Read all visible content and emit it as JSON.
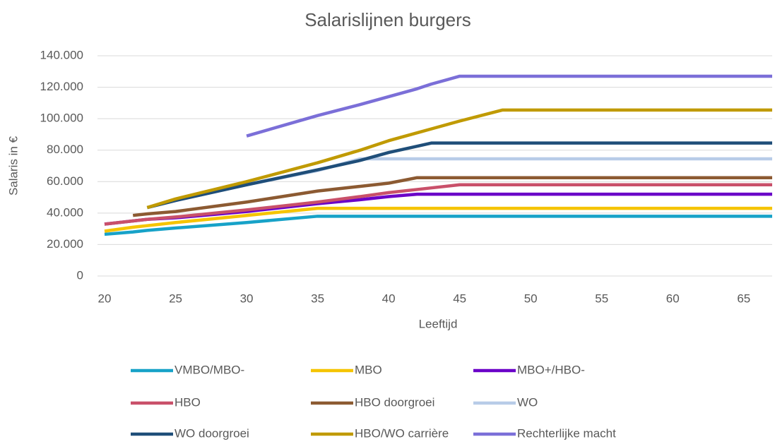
{
  "chart_data": {
    "type": "line",
    "title": "Salarislijnen burgers",
    "x_label": "Leeftijd",
    "y_label": "Salaris in €",
    "x": [
      20,
      22,
      23,
      25,
      30,
      35,
      38,
      40,
      42,
      43,
      45,
      48,
      67
    ],
    "xlim": [
      20,
      67
    ],
    "xticks": [
      20,
      25,
      30,
      35,
      40,
      45,
      50,
      55,
      60,
      65
    ],
    "ylim": [
      0,
      140000
    ],
    "yticks": [
      0,
      {
        "value": 20000,
        "label": "20.000"
      },
      {
        "value": 40000,
        "label": "40.000"
      },
      {
        "value": 60000,
        "label": "60.000"
      },
      {
        "value": 80000,
        "label": "80.000"
      },
      {
        "value": 100000,
        "label": "100.000"
      },
      {
        "value": 120000,
        "label": "120.000"
      },
      {
        "value": 140000,
        "label": "140.000"
      }
    ],
    "grid": true,
    "legend": "bottom",
    "series": [
      {
        "name": "VMBO/MBO-",
        "color": "#17a2c8",
        "values": [
          26500,
          28000,
          29000,
          30500,
          34000,
          38000,
          38000,
          38000,
          38000,
          38000,
          38000,
          38000,
          38000
        ]
      },
      {
        "name": "MBO",
        "color": "#f5c400",
        "values": [
          28500,
          31000,
          32000,
          34000,
          38500,
          43000,
          43000,
          43000,
          43000,
          43000,
          43000,
          43000,
          43000
        ]
      },
      {
        "name": "MBO+/HBO-",
        "color": "#6a00c8",
        "values": [
          33000,
          35000,
          36000,
          37000,
          41000,
          46000,
          48500,
          50500,
          52000,
          52000,
          52000,
          52000,
          52000
        ]
      },
      {
        "name": "HBO",
        "color": "#c9506a",
        "values": [
          33000,
          35000,
          36000,
          37500,
          42000,
          47000,
          50500,
          53000,
          55000,
          56000,
          58000,
          58000,
          58000
        ]
      },
      {
        "name": "HBO doorgroei",
        "color": "#8c5a32",
        "values": [
          null,
          38500,
          39500,
          41000,
          47000,
          54000,
          57000,
          59000,
          62500,
          62500,
          62500,
          62500,
          62500
        ]
      },
      {
        "name": "WO",
        "color": "#b8cce8",
        "values": [
          null,
          null,
          43500,
          48000,
          58000,
          67000,
          74500,
          74500,
          74500,
          74500,
          74500,
          74500,
          74500
        ]
      },
      {
        "name": "WO doorgroei",
        "color": "#1f4e79",
        "values": [
          null,
          null,
          43500,
          48000,
          58000,
          67500,
          73500,
          78500,
          82500,
          84500,
          84500,
          84500,
          84500
        ]
      },
      {
        "name": "HBO/WO carrière",
        "color": "#c09a00",
        "values": [
          null,
          null,
          43500,
          49000,
          60000,
          72000,
          80000,
          86000,
          91000,
          93500,
          98500,
          105500,
          105500
        ]
      },
      {
        "name": "Rechterlijke macht",
        "color": "#7b6fd8",
        "values": [
          null,
          null,
          null,
          null,
          89000,
          102000,
          109000,
          114000,
          119000,
          122000,
          127000,
          127000,
          127000
        ]
      }
    ]
  }
}
